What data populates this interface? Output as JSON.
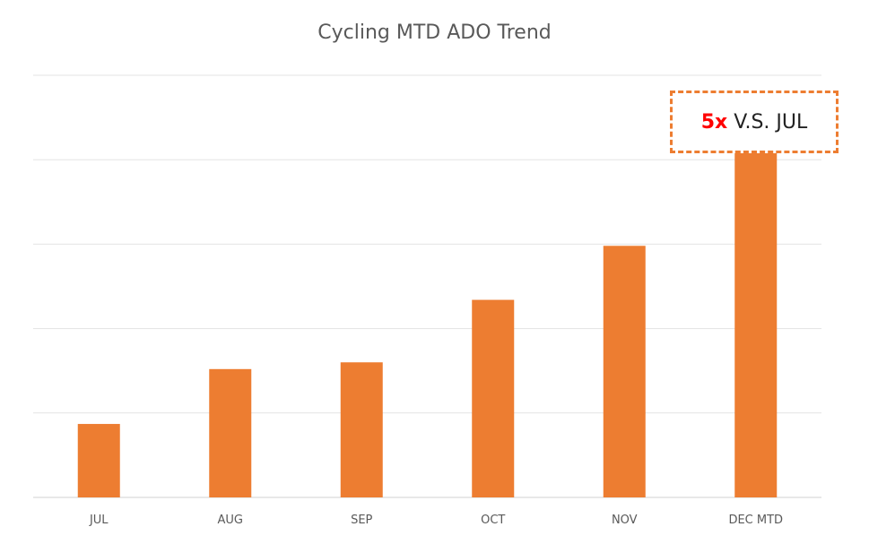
{
  "chart_data": {
    "type": "bar",
    "title": "Cycling MTD ADO Trend",
    "categories": [
      "JUL",
      "AUG",
      "SEP",
      "OCT",
      "NOV",
      "DEC MTD"
    ],
    "values": [
      0.87,
      1.52,
      1.6,
      2.34,
      2.98,
      4.08
    ],
    "ylim": [
      0,
      5
    ],
    "grid": true,
    "color": "#ED7D31",
    "annotation": {
      "multiplier": "5x",
      "text": "V.S. JUL",
      "multiplier_color": "#FF0000",
      "border_color": "#ED7D31"
    }
  }
}
